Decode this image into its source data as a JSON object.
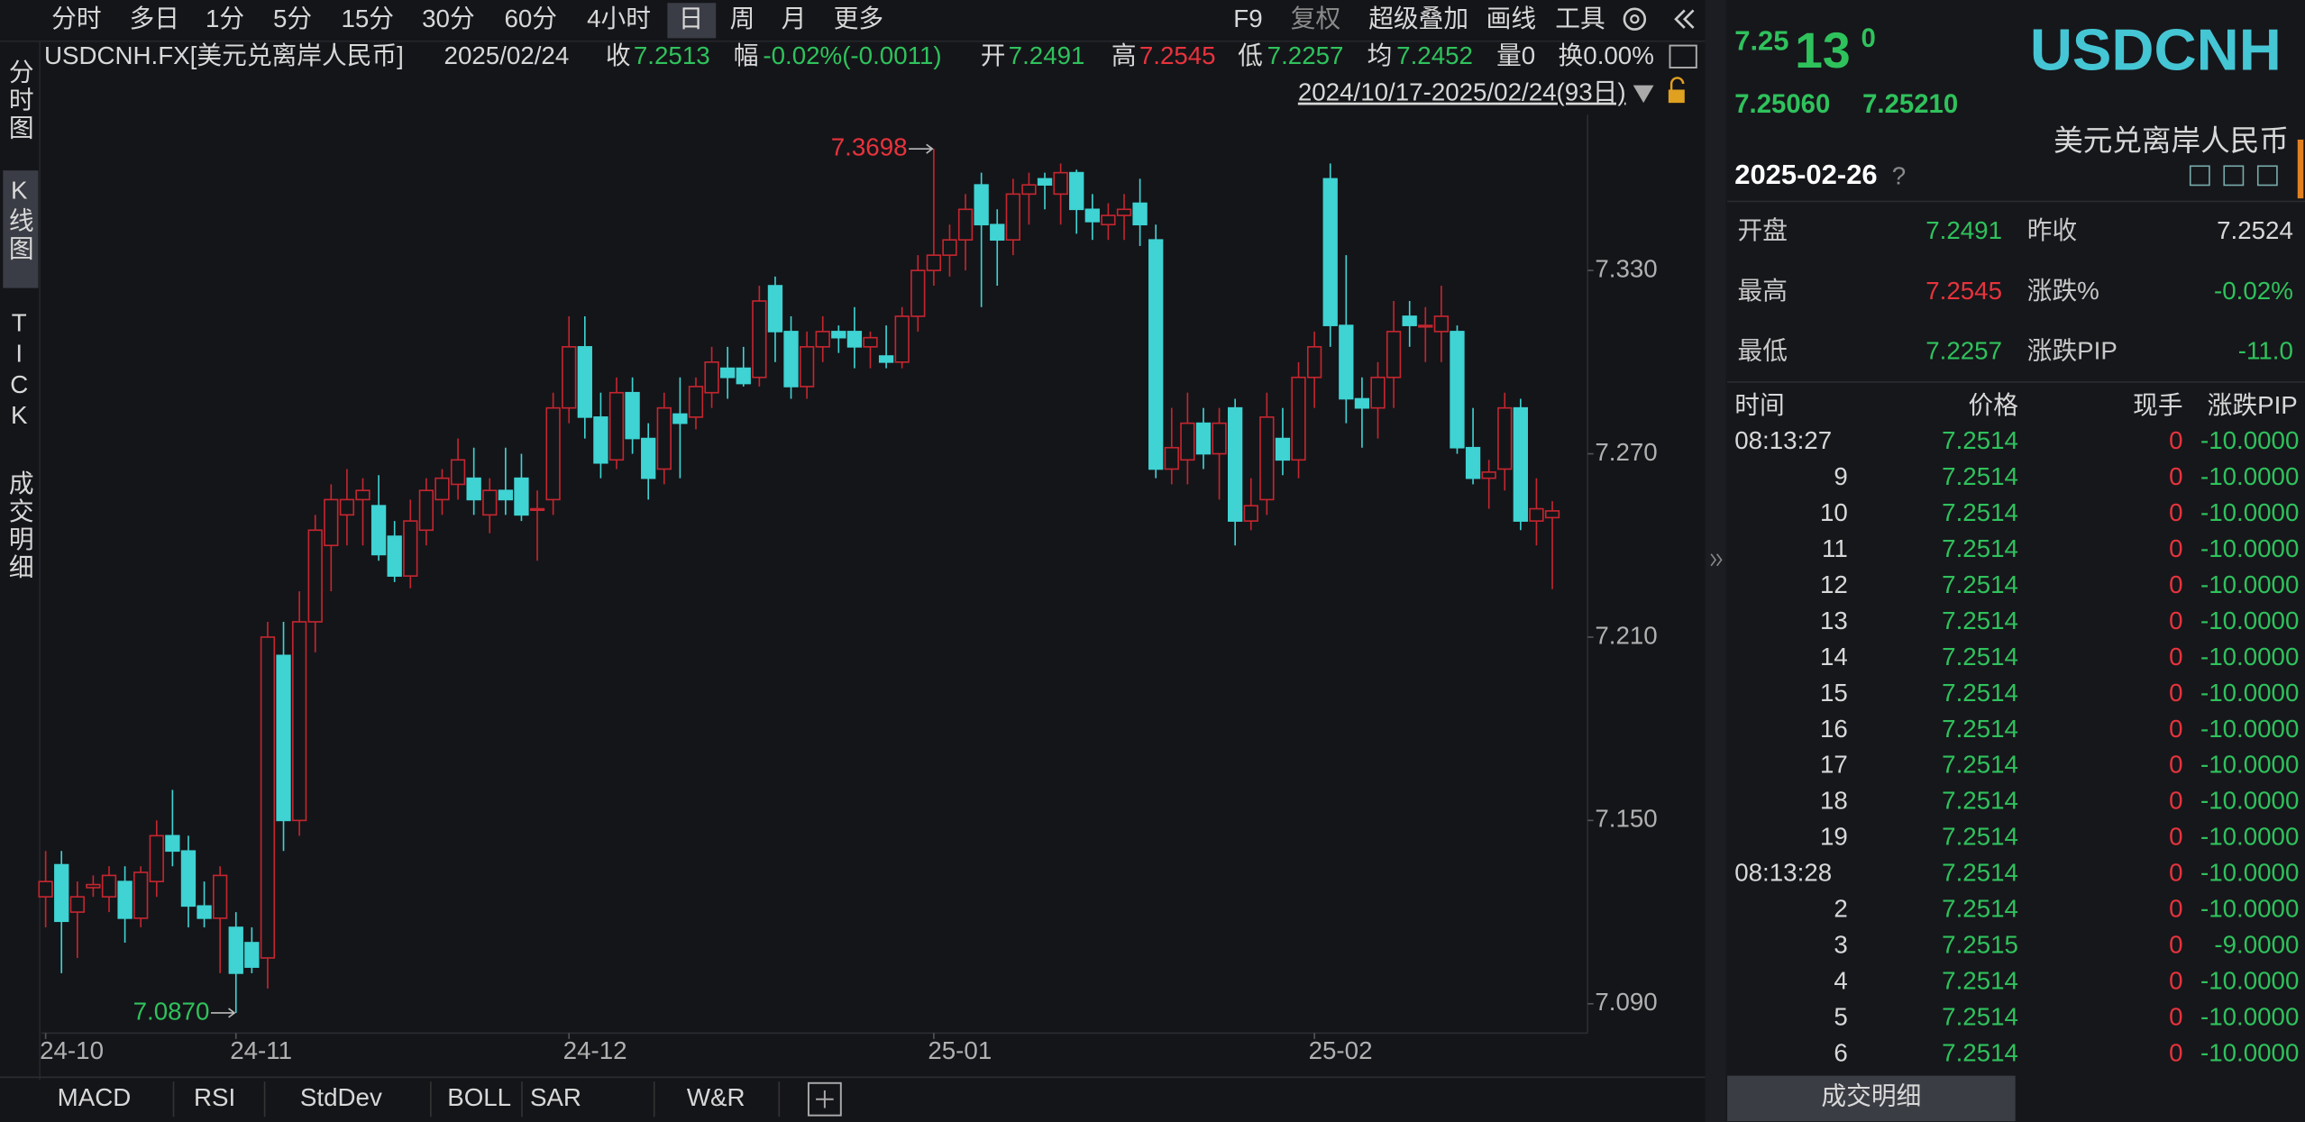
{
  "toolbar": {
    "periods": [
      "分时",
      "多日",
      "1分",
      "5分",
      "15分",
      "30分",
      "60分",
      "4小时",
      "日",
      "周",
      "月",
      "更多"
    ],
    "tools": [
      "F9",
      "复权",
      "超级叠加",
      "画线",
      "工具"
    ]
  },
  "info": {
    "symbol": "USDCNH.FX[美元兑离岸人民币]",
    "date": "2025/02/24",
    "close_label": "收",
    "close": "7.2513",
    "change_label": "幅",
    "change": "-0.02%(-0.0011)",
    "open_label": "开",
    "open": "7.2491",
    "high_label": "高",
    "high": "7.2545",
    "low_label": "低",
    "low": "7.2257",
    "avg_label": "均",
    "avg": "7.2452",
    "volume": "量0",
    "turnover": "换0.00%",
    "range": "2024/10/17-2025/02/24(93日)"
  },
  "sidebar": [
    "分时图",
    "K线图",
    "TICK",
    "成交明细"
  ],
  "chart_data": {
    "type": "candlestick",
    "candles": [
      [
        7.125,
        7.14,
        7.115,
        7.13
      ],
      [
        7.1355,
        7.14,
        7.1,
        7.117
      ],
      [
        7.12,
        7.13,
        7.105,
        7.125
      ],
      [
        7.128,
        7.132,
        7.125,
        7.129
      ],
      [
        7.125,
        7.135,
        7.12,
        7.132
      ],
      [
        7.13,
        7.135,
        7.11,
        7.118
      ],
      [
        7.118,
        7.135,
        7.115,
        7.133
      ],
      [
        7.13,
        7.15,
        7.125,
        7.145
      ],
      [
        7.145,
        7.16,
        7.135,
        7.14
      ],
      [
        7.14,
        7.145,
        7.115,
        7.122
      ],
      [
        7.122,
        7.13,
        7.115,
        7.118
      ],
      [
        7.118,
        7.135,
        7.1,
        7.132
      ],
      [
        7.115,
        7.12,
        7.087,
        7.1
      ],
      [
        7.11,
        7.115,
        7.1,
        7.102
      ],
      [
        7.105,
        7.215,
        7.095,
        7.21
      ],
      [
        7.204,
        7.215,
        7.14,
        7.15
      ],
      [
        7.15,
        7.225,
        7.145,
        7.215
      ],
      [
        7.215,
        7.25,
        7.205,
        7.245
      ],
      [
        7.24,
        7.26,
        7.225,
        7.255
      ],
      [
        7.25,
        7.265,
        7.24,
        7.255
      ],
      [
        7.255,
        7.262,
        7.24,
        7.258
      ],
      [
        7.253,
        7.263,
        7.235,
        7.237
      ],
      [
        7.243,
        7.248,
        7.228,
        7.23
      ],
      [
        7.23,
        7.255,
        7.226,
        7.248
      ],
      [
        7.245,
        7.262,
        7.24,
        7.258
      ],
      [
        7.255,
        7.265,
        7.25,
        7.262
      ],
      [
        7.26,
        7.275,
        7.255,
        7.268
      ],
      [
        7.262,
        7.272,
        7.25,
        7.255
      ],
      [
        7.25,
        7.262,
        7.244,
        7.258
      ],
      [
        7.258,
        7.272,
        7.25,
        7.255
      ],
      [
        7.262,
        7.27,
        7.248,
        7.25
      ],
      [
        7.252,
        7.258,
        7.235,
        7.252
      ],
      [
        7.255,
        7.29,
        7.25,
        7.285
      ],
      [
        7.285,
        7.315,
        7.28,
        7.305
      ],
      [
        7.305,
        7.315,
        7.275,
        7.282
      ],
      [
        7.282,
        7.29,
        7.262,
        7.267
      ],
      [
        7.268,
        7.295,
        7.265,
        7.29
      ],
      [
        7.29,
        7.295,
        7.27,
        7.275
      ],
      [
        7.275,
        7.28,
        7.255,
        7.262
      ],
      [
        7.265,
        7.29,
        7.26,
        7.285
      ],
      [
        7.283,
        7.295,
        7.262,
        7.28
      ],
      [
        7.282,
        7.295,
        7.278,
        7.292
      ],
      [
        7.29,
        7.305,
        7.285,
        7.3
      ],
      [
        7.298,
        7.305,
        7.288,
        7.295
      ],
      [
        7.298,
        7.305,
        7.292,
        7.293
      ],
      [
        7.295,
        7.325,
        7.292,
        7.32
      ],
      [
        7.325,
        7.328,
        7.3,
        7.31
      ],
      [
        7.31,
        7.315,
        7.288,
        7.292
      ],
      [
        7.292,
        7.31,
        7.288,
        7.305
      ],
      [
        7.305,
        7.315,
        7.3,
        7.31
      ],
      [
        7.31,
        7.312,
        7.303,
        7.308
      ],
      [
        7.31,
        7.318,
        7.298,
        7.305
      ],
      [
        7.305,
        7.31,
        7.298,
        7.308
      ],
      [
        7.302,
        7.312,
        7.298,
        7.3
      ],
      [
        7.3,
        7.318,
        7.298,
        7.315
      ],
      [
        7.315,
        7.335,
        7.31,
        7.33
      ],
      [
        7.33,
        7.3698,
        7.325,
        7.335
      ],
      [
        7.335,
        7.345,
        7.328,
        7.34
      ],
      [
        7.34,
        7.355,
        7.33,
        7.35
      ],
      [
        7.358,
        7.362,
        7.318,
        7.345
      ],
      [
        7.345,
        7.35,
        7.325,
        7.34
      ],
      [
        7.34,
        7.36,
        7.335,
        7.355
      ],
      [
        7.355,
        7.362,
        7.345,
        7.358
      ],
      [
        7.36,
        7.362,
        7.35,
        7.358
      ],
      [
        7.355,
        7.365,
        7.345,
        7.362
      ],
      [
        7.362,
        7.363,
        7.342,
        7.35
      ],
      [
        7.35,
        7.355,
        7.34,
        7.346
      ],
      [
        7.345,
        7.352,
        7.34,
        7.348
      ],
      [
        7.348,
        7.355,
        7.34,
        7.35
      ],
      [
        7.352,
        7.36,
        7.338,
        7.345
      ],
      [
        7.34,
        7.345,
        7.262,
        7.265
      ],
      [
        7.265,
        7.285,
        7.26,
        7.272
      ],
      [
        7.268,
        7.29,
        7.26,
        7.28
      ],
      [
        7.28,
        7.285,
        7.265,
        7.27
      ],
      [
        7.27,
        7.285,
        7.255,
        7.28
      ],
      [
        7.285,
        7.288,
        7.24,
        7.248
      ],
      [
        7.248,
        7.262,
        7.245,
        7.253
      ],
      [
        7.255,
        7.29,
        7.25,
        7.282
      ],
      [
        7.275,
        7.285,
        7.263,
        7.268
      ],
      [
        7.268,
        7.3,
        7.262,
        7.295
      ],
      [
        7.295,
        7.31,
        7.285,
        7.305
      ],
      [
        7.36,
        7.365,
        7.305,
        7.312
      ],
      [
        7.312,
        7.335,
        7.28,
        7.288
      ],
      [
        7.288,
        7.295,
        7.272,
        7.285
      ],
      [
        7.285,
        7.3,
        7.275,
        7.295
      ],
      [
        7.295,
        7.32,
        7.285,
        7.31
      ],
      [
        7.315,
        7.32,
        7.305,
        7.312
      ],
      [
        7.312,
        7.318,
        7.3,
        7.312
      ],
      [
        7.31,
        7.325,
        7.3,
        7.315
      ],
      [
        7.31,
        7.312,
        7.27,
        7.272
      ],
      [
        7.272,
        7.285,
        7.26,
        7.262
      ],
      [
        7.262,
        7.268,
        7.252,
        7.264
      ],
      [
        7.265,
        7.29,
        7.258,
        7.285
      ],
      [
        7.285,
        7.288,
        7.245,
        7.248
      ],
      [
        7.248,
        7.262,
        7.24,
        7.252
      ],
      [
        7.2491,
        7.2545,
        7.2257,
        7.2513
      ]
    ],
    "categories": [
      "24-10",
      null,
      null,
      null,
      null,
      null,
      null,
      null,
      null,
      null,
      null,
      null,
      "24-11",
      null,
      null,
      null,
      null,
      null,
      null,
      null,
      null,
      null,
      null,
      null,
      null,
      null,
      null,
      null,
      null,
      null,
      null,
      null,
      null,
      "24-12",
      null,
      null,
      null,
      null,
      null,
      null,
      null,
      null,
      null,
      null,
      null,
      null,
      null,
      null,
      null,
      null,
      null,
      null,
      null,
      null,
      null,
      null,
      "25-01",
      null,
      null,
      null,
      null,
      null,
      null,
      null,
      null,
      null,
      null,
      null,
      null,
      null,
      null,
      null,
      null,
      null,
      null,
      null,
      null,
      null,
      null,
      null,
      "25-02",
      null,
      null,
      null,
      null,
      null,
      null,
      null,
      null,
      null,
      null,
      null,
      null,
      null,
      null,
      null
    ],
    "ylim": [
      7.0804,
      7.381
    ],
    "yticks": [
      {
        "value": 7.33,
        "label": "7.330"
      },
      {
        "value": 7.27,
        "label": "7.270"
      },
      {
        "value": 7.21,
        "label": "7.210"
      },
      {
        "value": 7.15,
        "label": "7.150"
      },
      {
        "value": 7.09,
        "label": "7.090"
      }
    ],
    "up_color": "#c4262f",
    "down_color": "#3fd3d3",
    "max_label": "7.3698",
    "min_label": "7.0870"
  },
  "indicators": [
    "MACD",
    "RSI",
    "StdDev",
    "BOLL",
    "SAR",
    "W&R"
  ],
  "quote": {
    "price_prefix": "7.25",
    "price_main": "13",
    "price_suffix": "0",
    "symbol": "USDCNH",
    "bid": "7.25060",
    "ask": "7.25210",
    "name": "美元兑离岸人民币",
    "date": "2025-02-26",
    "help": "?",
    "fields": [
      [
        "开盘",
        "7.2491",
        "昨收",
        "7.2524"
      ],
      [
        "最高",
        "7.2545",
        "涨跌%",
        "-0.02%"
      ],
      [
        "最低",
        "7.2257",
        "涨跌PIP",
        "-11.0"
      ]
    ]
  },
  "trades": {
    "headers": [
      "时间",
      "价格",
      "现手",
      "涨跌PIP"
    ],
    "rows": [
      [
        "08:13:27",
        "7.2514",
        "0",
        "-10.0000"
      ],
      [
        "9",
        "7.2514",
        "0",
        "-10.0000"
      ],
      [
        "10",
        "7.2514",
        "0",
        "-10.0000"
      ],
      [
        "11",
        "7.2514",
        "0",
        "-10.0000"
      ],
      [
        "12",
        "7.2514",
        "0",
        "-10.0000"
      ],
      [
        "13",
        "7.2514",
        "0",
        "-10.0000"
      ],
      [
        "14",
        "7.2514",
        "0",
        "-10.0000"
      ],
      [
        "15",
        "7.2514",
        "0",
        "-10.0000"
      ],
      [
        "16",
        "7.2514",
        "0",
        "-10.0000"
      ],
      [
        "17",
        "7.2514",
        "0",
        "-10.0000"
      ],
      [
        "18",
        "7.2514",
        "0",
        "-10.0000"
      ],
      [
        "19",
        "7.2514",
        "0",
        "-10.0000"
      ],
      [
        "08:13:28",
        "7.2514",
        "0",
        "-10.0000"
      ],
      [
        "2",
        "7.2514",
        "0",
        "-10.0000"
      ],
      [
        "3",
        "7.2515",
        "0",
        "-9.0000"
      ],
      [
        "4",
        "7.2514",
        "0",
        "-10.0000"
      ],
      [
        "5",
        "7.2514",
        "0",
        "-10.0000"
      ],
      [
        "6",
        "7.2514",
        "0",
        "-10.0000"
      ]
    ]
  },
  "footer_tab": "成交明细"
}
